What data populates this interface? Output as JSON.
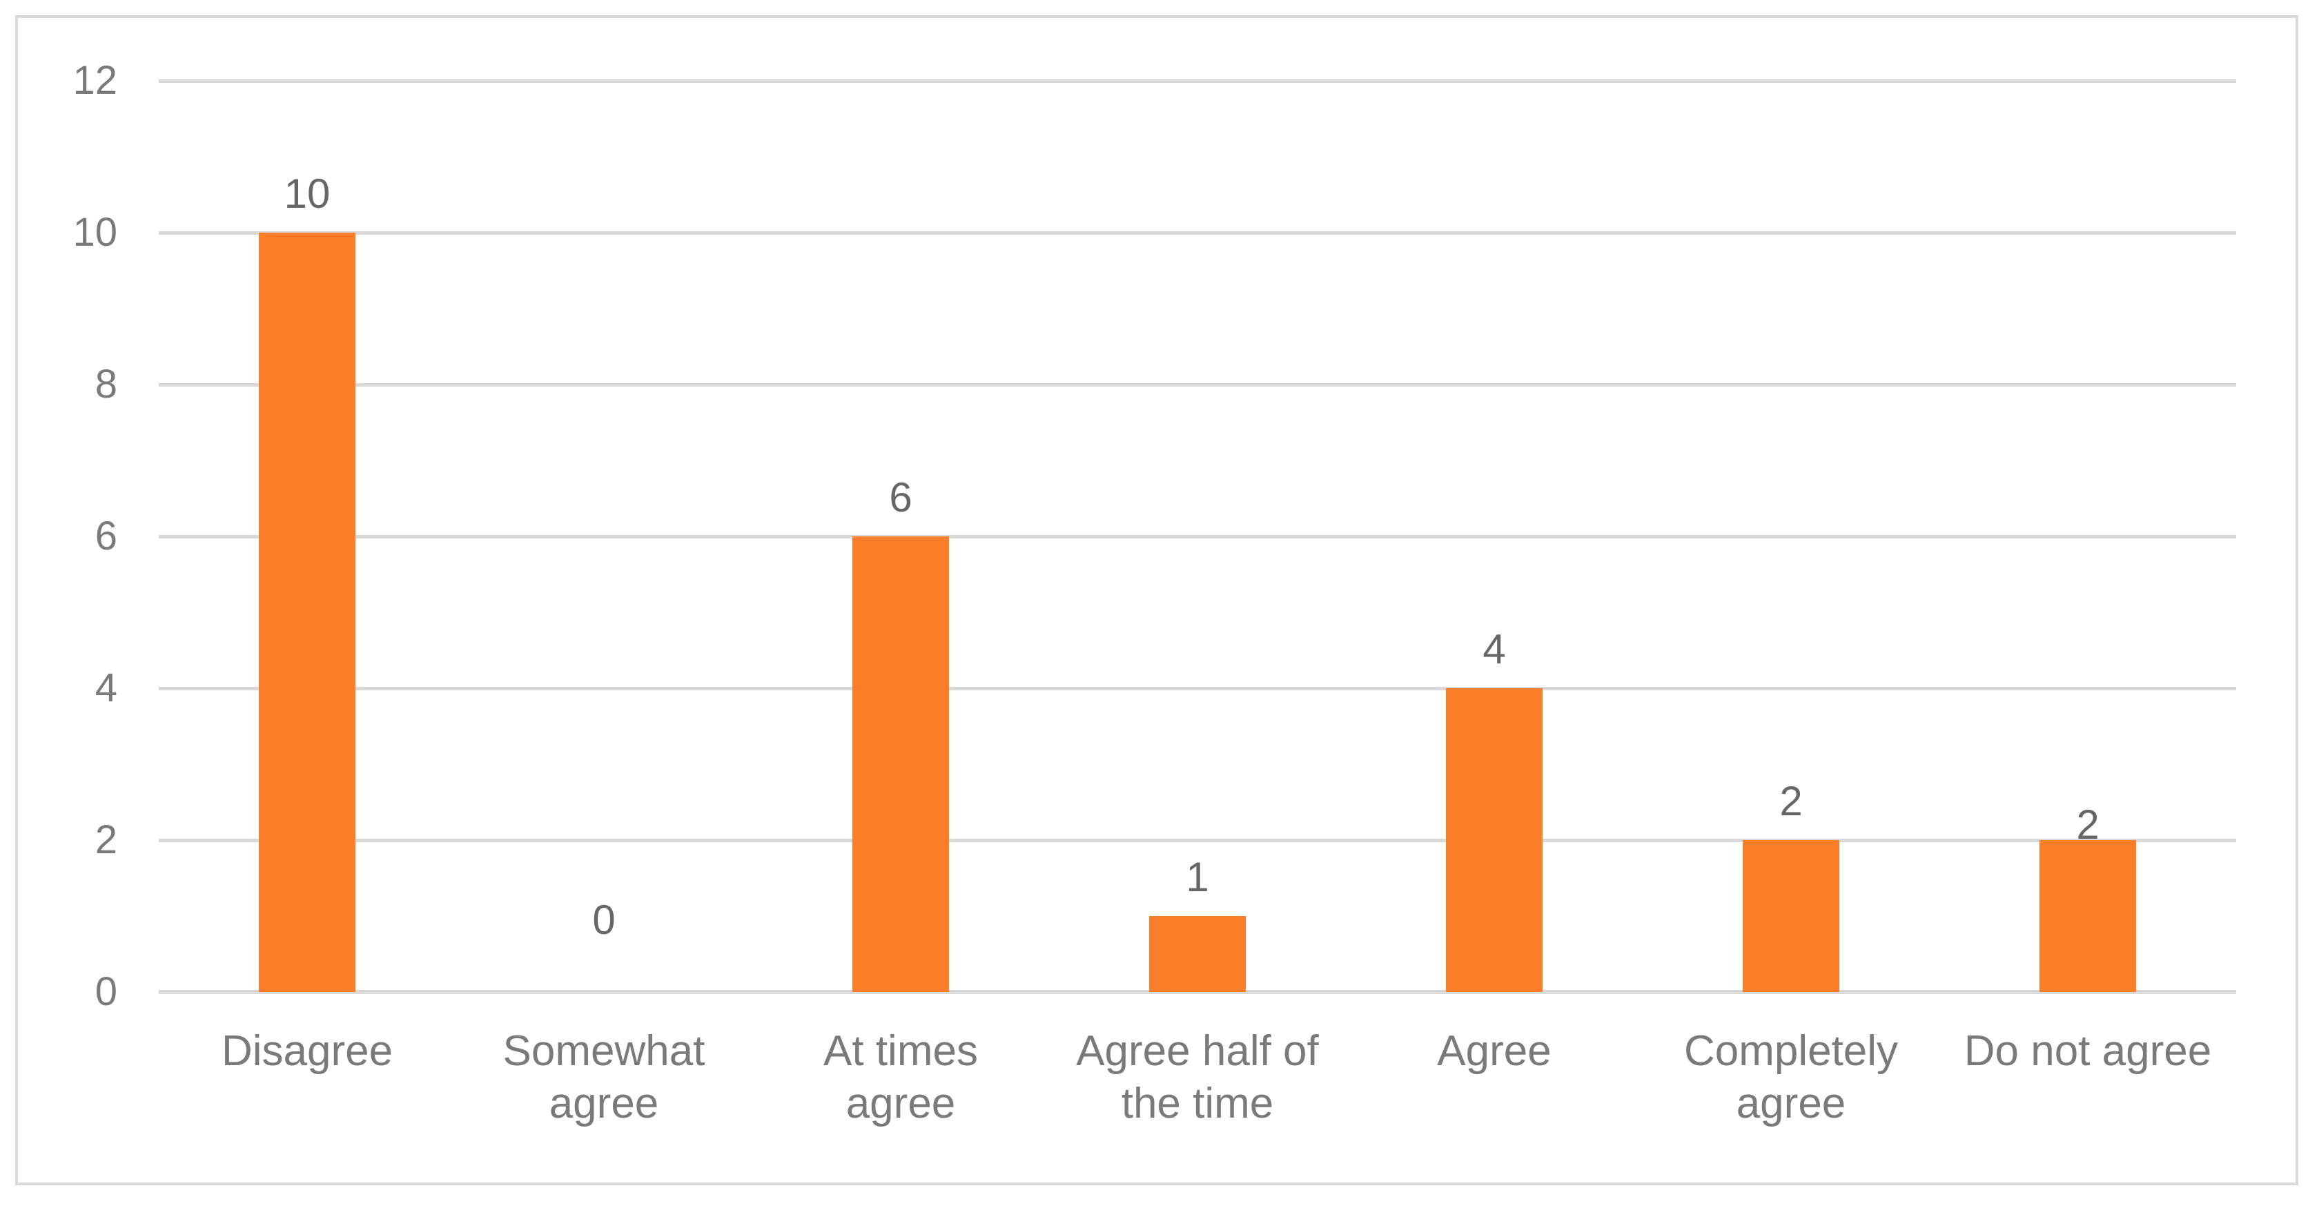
{
  "chart_data": {
    "type": "bar",
    "categories": [
      "Disagree",
      "Somewhat agree",
      "At times agree",
      "Agree half of the time",
      "Agree",
      "Completely agree",
      "Do not agree"
    ],
    "values": [
      10,
      0,
      6,
      1,
      4,
      2,
      2
    ],
    "data_labels": [
      "10",
      "0",
      "6",
      "1",
      "4",
      "2",
      "2"
    ],
    "label_positions": [
      "above",
      "above_axis",
      "above",
      "above",
      "above",
      "above",
      "overlap"
    ],
    "title": "",
    "xlabel": "",
    "ylabel": "",
    "ylim": [
      0,
      12
    ],
    "yticks": [
      "0",
      "2",
      "4",
      "6",
      "8",
      "10",
      "12"
    ],
    "grid": true,
    "legend": false,
    "colors": {
      "bar": "#FA7E27",
      "gridline": "#D9D9D9",
      "frame_border": "#D9D9D9",
      "axis_text": "#7A7A7A",
      "data_label_text": "#666666",
      "background": "#FFFFFF"
    }
  }
}
